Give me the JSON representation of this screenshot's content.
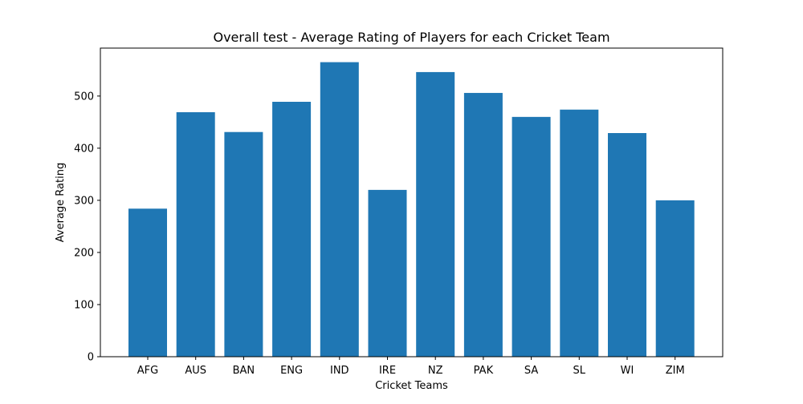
{
  "chart_data": {
    "type": "bar",
    "title": "Overall test - Average Rating of Players for each Cricket Team",
    "xlabel": "Cricket Teams",
    "ylabel": "Average Rating",
    "categories": [
      "AFG",
      "AUS",
      "BAN",
      "ENG",
      "IND",
      "IRE",
      "NZ",
      "PAK",
      "SA",
      "SL",
      "WI",
      "ZIM"
    ],
    "values": [
      284,
      469,
      431,
      489,
      565,
      320,
      546,
      506,
      460,
      474,
      429,
      300
    ],
    "ylim": [
      0,
      592
    ],
    "yticks": [
      0,
      100,
      200,
      300,
      400,
      500
    ],
    "grid": false,
    "bar_color": "#1f77b4"
  }
}
